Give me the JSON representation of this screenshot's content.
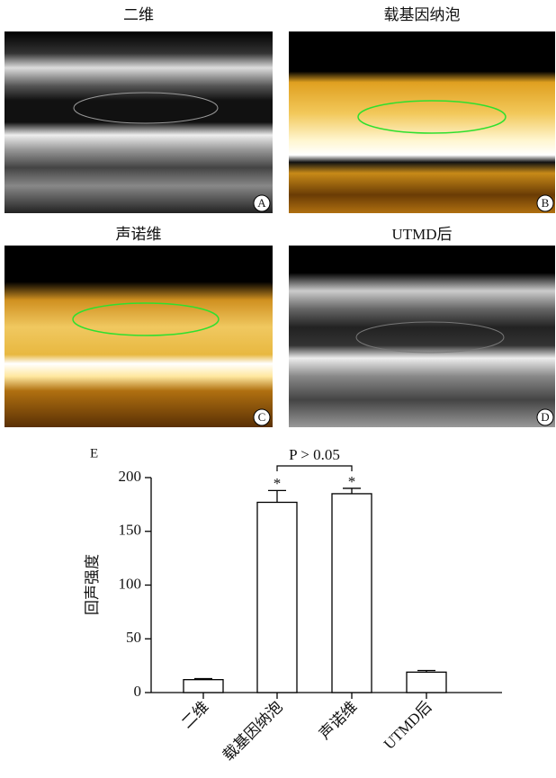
{
  "panels": [
    {
      "title": "二维",
      "letter": "A"
    },
    {
      "title": "载基因纳泡",
      "letter": "B"
    },
    {
      "title": "声诺维",
      "letter": "C"
    },
    {
      "title": "UTMD后",
      "letter": "D"
    }
  ],
  "chart_data": {
    "type": "bar",
    "panel_letter": "E",
    "ylabel": "回声强度",
    "categories": [
      "二维",
      "载基因纳泡",
      "声诺维",
      "UTMD后"
    ],
    "values": [
      12,
      177,
      185,
      19
    ],
    "errors": [
      1,
      11,
      5,
      1.5
    ],
    "color": "#ffffff",
    "ylim": [
      0,
      200
    ],
    "yticks": [
      0,
      50,
      100,
      150,
      200
    ],
    "significance_marks": [
      "*",
      "*"
    ],
    "comparison_label": "P > 0.05"
  }
}
